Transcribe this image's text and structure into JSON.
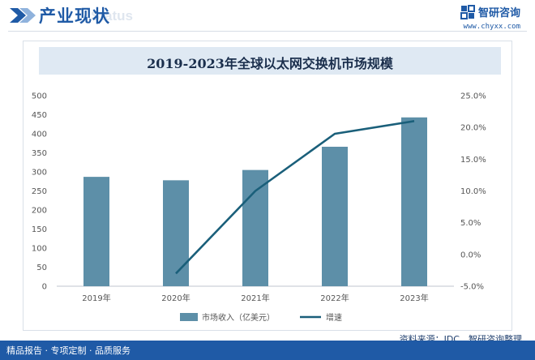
{
  "header": {
    "title": "产业现状",
    "subtitle_watermark": "Status",
    "brand_name": "智研咨询",
    "brand_url": "www.chyxx.com"
  },
  "chart_data": {
    "type": "bar",
    "title": "2019-2023年全球以太网交换机市场规模",
    "categories": [
      "2019年",
      "2020年",
      "2021年",
      "2022年",
      "2023年"
    ],
    "series": [
      {
        "name": "市场收入（亿美元）",
        "type": "bar",
        "axis": "left",
        "values": [
          287,
          278,
          305,
          366,
          443
        ],
        "color": "#5d8fa8"
      },
      {
        "name": "增速",
        "type": "line",
        "axis": "right",
        "values": [
          null,
          -3.0,
          10.0,
          19.0,
          21.0
        ],
        "color": "#1a5f7a"
      }
    ],
    "y_left": {
      "min": 0,
      "max": 500,
      "ticks": [
        "0",
        "50",
        "100",
        "150",
        "200",
        "250",
        "300",
        "350",
        "400",
        "450",
        "500"
      ]
    },
    "y_right": {
      "min": -5,
      "max": 25,
      "ticks": [
        "-5.0%",
        "0.0%",
        "5.0%",
        "10.0%",
        "15.0%",
        "20.0%",
        "25.0%"
      ]
    },
    "legend_position": "bottom-center",
    "grid": false
  },
  "source_text": "资料来源：IDC、智研咨询整理",
  "footer_text": "精品报告 · 专项定制 · 品质服务"
}
